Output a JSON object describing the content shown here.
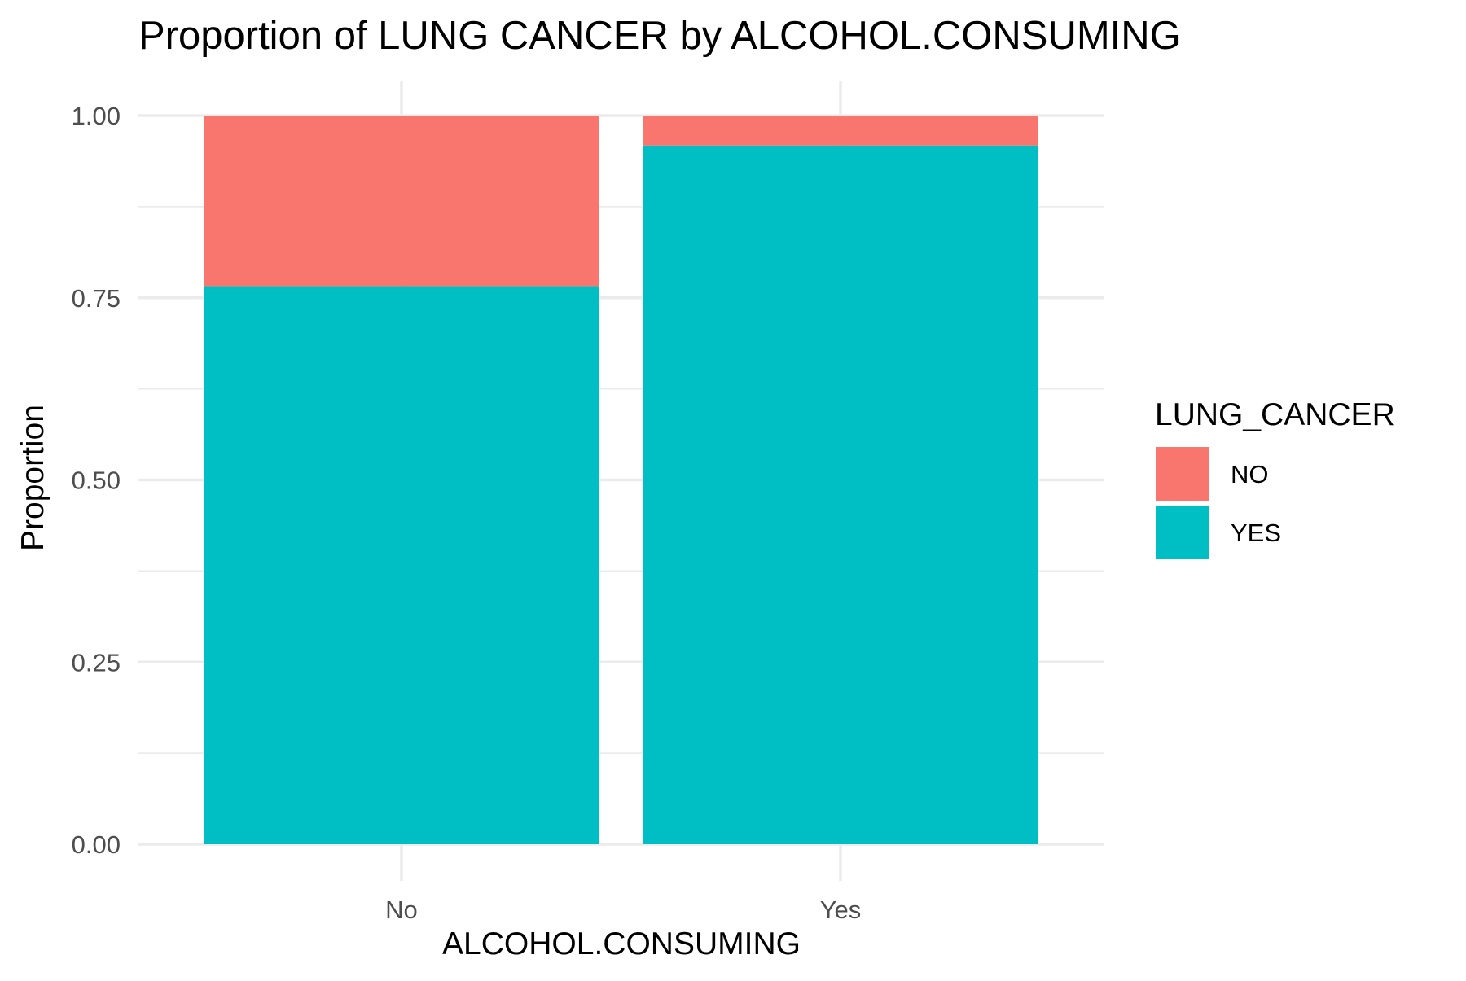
{
  "chart_data": {
    "type": "bar",
    "stacked": true,
    "title": "Proportion of LUNG CANCER by ALCOHOL.CONSUMING",
    "xlabel": "ALCOHOL.CONSUMING",
    "ylabel": "Proportion",
    "categories": [
      "No",
      "Yes"
    ],
    "ylim": [
      0,
      1
    ],
    "yticks": [
      "0.00",
      "0.25",
      "0.50",
      "0.75",
      "1.00"
    ],
    "grid": true,
    "legend": {
      "title": "LUNG_CANCER",
      "position": "right"
    },
    "series": [
      {
        "name": "YES",
        "color": "#00BFC4",
        "values": [
          0.766,
          0.959
        ]
      },
      {
        "name": "NO",
        "color": "#F8766D",
        "values": [
          0.234,
          0.041
        ]
      }
    ]
  }
}
